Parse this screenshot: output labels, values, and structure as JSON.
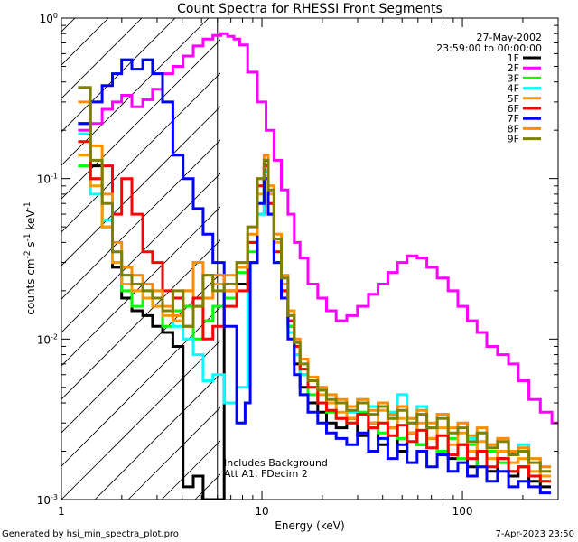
{
  "chart_data": {
    "type": "line",
    "title": "Count Spectra for RHESSI Front Segments",
    "xlabel": "Energy (keV)",
    "ylabel_base": "counts cm",
    "ylabel_exp1": "-2",
    "ylabel_mid": " s",
    "ylabel_exp2": "-1",
    "ylabel_end": " keV",
    "ylabel_exp3": "-1",
    "x_scale": "log",
    "y_scale": "log",
    "xlim": [
      1,
      300
    ],
    "ylim": [
      0.001,
      1
    ],
    "x_ticks": [
      {
        "v": 1,
        "label": "1"
      },
      {
        "v": 10,
        "label": "10"
      },
      {
        "v": 100,
        "label": "100"
      }
    ],
    "y_ticks": [
      {
        "v": 1,
        "base": "10",
        "exp": "0"
      },
      {
        "v": 0.1,
        "base": "10",
        "exp": "-1"
      },
      {
        "v": 0.01,
        "base": "10",
        "exp": "-2"
      },
      {
        "v": 0.001,
        "base": "10",
        "exp": "-3"
      }
    ],
    "date": "27-May-2002",
    "time_range": "23:59:00 to 00:00:00",
    "hatch_limit_kev": 6,
    "annotation_line1": "Includes Background",
    "annotation_line2": "Att A1, FDecim 2",
    "footer_left": "Generated by hsi_min_spectra_plot.pro",
    "footer_right": "7-Apr-2023 23:50",
    "series": [
      {
        "name": "1F",
        "color": "#000000",
        "x": [
          1.3,
          1.5,
          1.7,
          1.9,
          2.1,
          2.4,
          2.7,
          3.0,
          3.4,
          3.8,
          4.3,
          4.8,
          5.4,
          6.0,
          7.0,
          8.0,
          9.0,
          10.0,
          10.5,
          11.0,
          12.0,
          13.0,
          14.0,
          15.0,
          16.0,
          18.0,
          20.0,
          22.0,
          25.0,
          28.0,
          32.0,
          36.0,
          40.0,
          45.0,
          50.0,
          56.0,
          63.0,
          70.0,
          80.0,
          90.0,
          100.0,
          112.0,
          125.0,
          140.0,
          160.0,
          180.0,
          200.0,
          230.0,
          260.0
        ],
        "y": [
          0.22,
          0.12,
          0.05,
          0.028,
          0.018,
          0.015,
          0.014,
          0.012,
          0.011,
          0.009,
          0.0012,
          0.0014,
          0.001,
          0.001,
          0.02,
          0.022,
          0.03,
          0.06,
          0.1,
          0.06,
          0.03,
          0.02,
          0.012,
          0.007,
          0.005,
          0.004,
          0.0035,
          0.003,
          0.0028,
          0.0032,
          0.0025,
          0.003,
          0.0022,
          0.0028,
          0.002,
          0.0026,
          0.0022,
          0.0024,
          0.002,
          0.0018,
          0.0022,
          0.0016,
          0.002,
          0.0015,
          0.0018,
          0.0014,
          0.0016,
          0.0013,
          0.0012
        ]
      },
      {
        "name": "2F",
        "color": "#ff00ff",
        "x": [
          1.3,
          1.5,
          1.7,
          1.9,
          2.1,
          2.4,
          2.7,
          3.0,
          3.4,
          3.8,
          4.3,
          4.8,
          5.4,
          6.0,
          6.5,
          7.0,
          7.5,
          8.0,
          9.0,
          10.0,
          11.0,
          12.0,
          13.0,
          14.0,
          15.0,
          16.0,
          18.0,
          20.0,
          22.0,
          25.0,
          28.0,
          32.0,
          36.0,
          40.0,
          45.0,
          50.0,
          56.0,
          63.0,
          70.0,
          80.0,
          90.0,
          100.0,
          112.0,
          125.0,
          140.0,
          160.0,
          180.0,
          200.0,
          230.0,
          260.0,
          300.0
        ],
        "y": [
          0.2,
          0.22,
          0.27,
          0.3,
          0.33,
          0.28,
          0.31,
          0.36,
          0.45,
          0.5,
          0.58,
          0.67,
          0.74,
          0.78,
          0.8,
          0.77,
          0.74,
          0.68,
          0.46,
          0.3,
          0.2,
          0.13,
          0.085,
          0.06,
          0.04,
          0.032,
          0.022,
          0.018,
          0.015,
          0.013,
          0.014,
          0.016,
          0.019,
          0.022,
          0.026,
          0.03,
          0.033,
          0.032,
          0.028,
          0.024,
          0.02,
          0.016,
          0.013,
          0.011,
          0.009,
          0.008,
          0.007,
          0.0055,
          0.0042,
          0.0035,
          0.003
        ]
      },
      {
        "name": "3F",
        "color": "#00ff00",
        "x": [
          1.3,
          1.5,
          1.7,
          1.9,
          2.1,
          2.4,
          2.7,
          3.0,
          3.4,
          3.8,
          4.3,
          4.8,
          5.4,
          6.0,
          7.0,
          8.0,
          9.0,
          10.0,
          10.5,
          11.0,
          12.0,
          13.0,
          14.0,
          15.0,
          16.0,
          18.0,
          20.0,
          22.0,
          25.0,
          28.0,
          32.0,
          36.0,
          40.0,
          45.0,
          50.0,
          56.0,
          63.0,
          70.0,
          80.0,
          90.0,
          100.0,
          112.0,
          125.0,
          140.0,
          160.0,
          180.0,
          200.0,
          230.0,
          260.0
        ],
        "y": [
          0.12,
          0.1,
          0.05,
          0.03,
          0.02,
          0.016,
          0.02,
          0.018,
          0.012,
          0.015,
          0.016,
          0.01,
          0.013,
          0.016,
          0.018,
          0.026,
          0.035,
          0.07,
          0.12,
          0.07,
          0.035,
          0.02,
          0.012,
          0.008,
          0.006,
          0.0045,
          0.004,
          0.0035,
          0.0032,
          0.003,
          0.0035,
          0.0028,
          0.0026,
          0.0032,
          0.0024,
          0.003,
          0.0022,
          0.0028,
          0.002,
          0.0024,
          0.0018,
          0.0022,
          0.0016,
          0.002,
          0.0017,
          0.0015,
          0.0016,
          0.0014,
          0.0013
        ]
      },
      {
        "name": "4F",
        "color": "#00ffff",
        "x": [
          1.3,
          1.5,
          1.7,
          1.9,
          2.1,
          2.4,
          2.7,
          3.0,
          3.4,
          3.8,
          4.3,
          4.8,
          5.4,
          6.0,
          7.0,
          8.0,
          9.0,
          10.0,
          10.5,
          11.0,
          12.0,
          13.0,
          14.0,
          15.0,
          16.0,
          18.0,
          20.0,
          22.0,
          25.0,
          28.0,
          32.0,
          36.0,
          40.0,
          45.0,
          50.0,
          56.0,
          63.0,
          70.0,
          80.0,
          90.0,
          100.0,
          112.0,
          125.0,
          140.0,
          160.0,
          180.0,
          200.0,
          230.0,
          260.0
        ],
        "y": [
          0.19,
          0.08,
          0.055,
          0.035,
          0.025,
          0.022,
          0.018,
          0.02,
          0.015,
          0.012,
          0.01,
          0.008,
          0.0055,
          0.006,
          0.004,
          0.005,
          0.03,
          0.06,
          0.11,
          0.06,
          0.03,
          0.018,
          0.011,
          0.008,
          0.006,
          0.0055,
          0.005,
          0.0045,
          0.004,
          0.0035,
          0.0042,
          0.0038,
          0.004,
          0.0035,
          0.0045,
          0.0032,
          0.0038,
          0.0028,
          0.0034,
          0.0026,
          0.003,
          0.0024,
          0.0026,
          0.0022,
          0.0024,
          0.002,
          0.0022,
          0.0018,
          0.0016
        ]
      },
      {
        "name": "5F",
        "color": "#ff9900",
        "x": [
          1.3,
          1.5,
          1.7,
          1.9,
          2.1,
          2.4,
          2.7,
          3.0,
          3.4,
          3.8,
          4.3,
          4.8,
          5.4,
          6.0,
          7.0,
          8.0,
          9.0,
          10.0,
          10.5,
          11.0,
          12.0,
          13.0,
          14.0,
          15.0,
          16.0,
          18.0,
          20.0,
          22.0,
          25.0,
          28.0,
          32.0,
          36.0,
          40.0,
          45.0,
          50.0,
          56.0,
          63.0,
          70.0,
          80.0,
          90.0,
          100.0,
          112.0,
          125.0,
          140.0,
          160.0,
          180.0,
          200.0,
          230.0,
          260.0
        ],
        "y": [
          0.14,
          0.09,
          0.05,
          0.03,
          0.022,
          0.02,
          0.018,
          0.016,
          0.014,
          0.013,
          0.02,
          0.016,
          0.025,
          0.022,
          0.025,
          0.03,
          0.04,
          0.08,
          0.13,
          0.08,
          0.04,
          0.022,
          0.014,
          0.009,
          0.0065,
          0.005,
          0.0045,
          0.004,
          0.0035,
          0.0032,
          0.0034,
          0.003,
          0.0036,
          0.0028,
          0.0032,
          0.0026,
          0.003,
          0.0024,
          0.0028,
          0.0022,
          0.0026,
          0.002,
          0.0023,
          0.0018,
          0.002,
          0.0017,
          0.0018,
          0.0015,
          0.0014
        ]
      },
      {
        "name": "6F",
        "color": "#ff0000",
        "x": [
          1.3,
          1.5,
          1.7,
          1.9,
          2.1,
          2.4,
          2.7,
          3.0,
          3.4,
          3.8,
          4.3,
          4.8,
          5.4,
          6.0,
          7.0,
          8.0,
          9.0,
          10.0,
          10.5,
          11.0,
          12.0,
          13.0,
          14.0,
          15.0,
          16.0,
          18.0,
          20.0,
          22.0,
          25.0,
          28.0,
          32.0,
          36.0,
          40.0,
          45.0,
          50.0,
          56.0,
          63.0,
          70.0,
          80.0,
          90.0,
          100.0,
          112.0,
          125.0,
          140.0,
          160.0,
          180.0,
          200.0,
          230.0,
          260.0
        ],
        "y": [
          0.17,
          0.1,
          0.12,
          0.06,
          0.1,
          0.06,
          0.035,
          0.03,
          0.02,
          0.018,
          0.012,
          0.018,
          0.01,
          0.012,
          0.016,
          0.02,
          0.04,
          0.09,
          0.12,
          0.07,
          0.035,
          0.02,
          0.013,
          0.009,
          0.0065,
          0.005,
          0.004,
          0.0036,
          0.0032,
          0.003,
          0.0034,
          0.0028,
          0.003,
          0.0025,
          0.0029,
          0.0023,
          0.0027,
          0.0021,
          0.0025,
          0.0019,
          0.0022,
          0.0018,
          0.002,
          0.0016,
          0.0018,
          0.0015,
          0.0016,
          0.0014,
          0.0013
        ]
      },
      {
        "name": "7F",
        "color": "#0000ff",
        "x": [
          1.3,
          1.5,
          1.7,
          1.9,
          2.1,
          2.4,
          2.7,
          3.0,
          3.4,
          3.8,
          4.3,
          4.8,
          5.4,
          6.0,
          7.0,
          8.0,
          8.5,
          9.0,
          10.0,
          10.5,
          11.0,
          12.0,
          13.0,
          14.0,
          15.0,
          16.0,
          18.0,
          20.0,
          22.0,
          25.0,
          28.0,
          32.0,
          36.0,
          40.0,
          45.0,
          50.0,
          56.0,
          63.0,
          70.0,
          80.0,
          90.0,
          100.0,
          112.0,
          125.0,
          140.0,
          160.0,
          180.0,
          200.0,
          230.0,
          260.0
        ],
        "y": [
          0.22,
          0.3,
          0.38,
          0.45,
          0.55,
          0.48,
          0.55,
          0.45,
          0.3,
          0.14,
          0.1,
          0.065,
          0.045,
          0.03,
          0.012,
          0.003,
          0.004,
          0.03,
          0.07,
          0.1,
          0.06,
          0.03,
          0.018,
          0.01,
          0.006,
          0.0045,
          0.0035,
          0.003,
          0.0026,
          0.0024,
          0.0022,
          0.0026,
          0.002,
          0.0024,
          0.0018,
          0.0022,
          0.0017,
          0.002,
          0.0016,
          0.0019,
          0.0015,
          0.0017,
          0.0014,
          0.0016,
          0.0013,
          0.0015,
          0.0012,
          0.0013,
          0.0012,
          0.0011
        ]
      },
      {
        "name": "8F",
        "color": "#ff8c00",
        "x": [
          1.3,
          1.5,
          1.7,
          1.9,
          2.1,
          2.4,
          2.7,
          3.0,
          3.4,
          3.8,
          4.3,
          4.8,
          5.4,
          6.0,
          7.0,
          8.0,
          9.0,
          10.0,
          10.5,
          11.0,
          12.0,
          13.0,
          14.0,
          15.0,
          16.0,
          18.0,
          20.0,
          22.0,
          25.0,
          28.0,
          32.0,
          36.0,
          40.0,
          45.0,
          50.0,
          56.0,
          63.0,
          70.0,
          80.0,
          90.0,
          100.0,
          112.0,
          125.0,
          140.0,
          160.0,
          180.0,
          200.0,
          230.0,
          260.0
        ],
        "y": [
          0.3,
          0.16,
          0.08,
          0.04,
          0.028,
          0.025,
          0.022,
          0.02,
          0.016,
          0.014,
          0.02,
          0.03,
          0.018,
          0.025,
          0.02,
          0.028,
          0.045,
          0.1,
          0.14,
          0.09,
          0.045,
          0.025,
          0.015,
          0.01,
          0.0075,
          0.0058,
          0.005,
          0.0045,
          0.0042,
          0.0038,
          0.0042,
          0.0036,
          0.004,
          0.0034,
          0.0038,
          0.0032,
          0.0036,
          0.003,
          0.0034,
          0.0028,
          0.003,
          0.0025,
          0.0028,
          0.0022,
          0.0024,
          0.002,
          0.0021,
          0.0018,
          0.0016
        ]
      },
      {
        "name": "9F",
        "color": "#808000",
        "x": [
          1.3,
          1.5,
          1.7,
          1.9,
          2.1,
          2.4,
          2.7,
          3.0,
          3.4,
          3.8,
          4.3,
          4.8,
          5.4,
          6.0,
          7.0,
          8.0,
          9.0,
          10.0,
          10.5,
          11.0,
          12.0,
          13.0,
          14.0,
          15.0,
          16.0,
          18.0,
          20.0,
          22.0,
          25.0,
          28.0,
          32.0,
          36.0,
          40.0,
          45.0,
          50.0,
          56.0,
          63.0,
          70.0,
          80.0,
          90.0,
          100.0,
          112.0,
          125.0,
          140.0,
          160.0,
          180.0,
          200.0,
          230.0,
          260.0
        ],
        "y": [
          0.37,
          0.13,
          0.07,
          0.035,
          0.025,
          0.022,
          0.02,
          0.018,
          0.015,
          0.02,
          0.012,
          0.016,
          0.025,
          0.02,
          0.022,
          0.03,
          0.05,
          0.1,
          0.13,
          0.085,
          0.042,
          0.024,
          0.014,
          0.0095,
          0.007,
          0.0055,
          0.0048,
          0.0042,
          0.004,
          0.0036,
          0.004,
          0.0034,
          0.0038,
          0.0032,
          0.0036,
          0.003,
          0.0034,
          0.0028,
          0.0032,
          0.0026,
          0.0028,
          0.0023,
          0.0026,
          0.0021,
          0.0023,
          0.0019,
          0.002,
          0.0017,
          0.0015
        ]
      }
    ]
  }
}
